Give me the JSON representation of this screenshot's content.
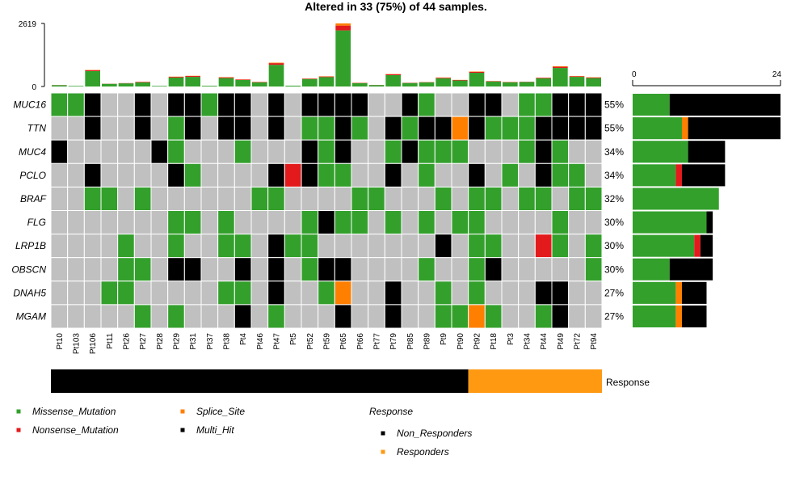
{
  "title": "Altered in 33 (75%) of 44 samples.",
  "chart_data": {
    "type": "heatmap",
    "title": "Altered in 33 (75%) of 44 samples.",
    "samples": [
      "Pt10",
      "Pt103",
      "Pt106",
      "Pt11",
      "Pt26",
      "Pt27",
      "Pt28",
      "Pt29",
      "Pt31",
      "Pt37",
      "Pt38",
      "Pt4",
      "Pt46",
      "Pt47",
      "Pt5",
      "Pt52",
      "Pt59",
      "Pt65",
      "Pt66",
      "Pt77",
      "Pt79",
      "Pt85",
      "Pt89",
      "Pt9",
      "Pt90",
      "Pt92",
      "Pt18",
      "Pt3",
      "Pt34",
      "Pt44",
      "Pt49",
      "Pt72",
      "Pt94"
    ],
    "genes": [
      "MUC16",
      "TTN",
      "MUC4",
      "PCLO",
      "BRAF",
      "FLG",
      "LRP1B",
      "OBSCN",
      "DNAH5",
      "MGAM"
    ],
    "gene_pct": [
      "55%",
      "55%",
      "34%",
      "34%",
      "32%",
      "30%",
      "30%",
      "30%",
      "27%",
      "27%"
    ],
    "matrix": [
      "GGMNNMNMMGMMNMNMMMMNNMGNNMMNGGMMM",
      "NNMNNMNGMNMMNMNGGMGNMGMMSMGGGMMMM",
      "MNNNNNMGNNNGNNNMGMNNGMGGGNNNGMGNN",
      "NNMNNNNMGNNNNMXMGGNNMNGNNMNGNMGGN",
      "NNGGNGNNNNNNGGNNNNGGNNNGNGGNGGNGG",
      "NNNNNNNGGNGNNNNGMGGNGNGNGGNNNNGNN",
      "NNNNGNNGNNGGNMGGNNNNNNNMNGGNNXGNG",
      "NNNNGGNMMNNMNMNGMMNNNNGNNGMNNNNNG",
      "NNNGGNNNNNGGNMNNGSNNMNNGNGNNNMMNN",
      "NNNNNGNGNNNMNGNNNMNNMNNGGSGNNGMNN"
    ],
    "tmb_scale_max": 2619,
    "tmb_ticks": [
      "2619",
      "0"
    ],
    "tmb": [
      {
        "sample": "Pt10",
        "missense": 55,
        "nonsense": 5,
        "splice": 0,
        "multi": 0
      },
      {
        "sample": "Pt103",
        "missense": 25,
        "nonsense": 0,
        "splice": 0,
        "multi": 0
      },
      {
        "sample": "Pt106",
        "missense": 640,
        "nonsense": 40,
        "splice": 10,
        "multi": 0
      },
      {
        "sample": "Pt11",
        "missense": 110,
        "nonsense": 5,
        "splice": 0,
        "multi": 0
      },
      {
        "sample": "Pt26",
        "missense": 130,
        "nonsense": 10,
        "splice": 0,
        "multi": 0
      },
      {
        "sample": "Pt27",
        "missense": 170,
        "nonsense": 20,
        "splice": 5,
        "multi": 0
      },
      {
        "sample": "Pt28",
        "missense": 25,
        "nonsense": 0,
        "splice": 0,
        "multi": 0
      },
      {
        "sample": "Pt29",
        "missense": 370,
        "nonsense": 30,
        "splice": 10,
        "multi": 0
      },
      {
        "sample": "Pt31",
        "missense": 400,
        "nonsense": 35,
        "splice": 10,
        "multi": 0
      },
      {
        "sample": "Pt37",
        "missense": 30,
        "nonsense": 0,
        "splice": 0,
        "multi": 0
      },
      {
        "sample": "Pt38",
        "missense": 350,
        "nonsense": 30,
        "splice": 10,
        "multi": 0
      },
      {
        "sample": "Pt4",
        "missense": 270,
        "nonsense": 20,
        "splice": 5,
        "multi": 0
      },
      {
        "sample": "Pt46",
        "missense": 170,
        "nonsense": 15,
        "splice": 5,
        "multi": 0
      },
      {
        "sample": "Pt47",
        "missense": 900,
        "nonsense": 70,
        "splice": 20,
        "multi": 0
      },
      {
        "sample": "Pt5",
        "missense": 35,
        "nonsense": 0,
        "splice": 0,
        "multi": 0
      },
      {
        "sample": "Pt52",
        "missense": 310,
        "nonsense": 20,
        "splice": 5,
        "multi": 0
      },
      {
        "sample": "Pt59",
        "missense": 390,
        "nonsense": 25,
        "splice": 10,
        "multi": 0
      },
      {
        "sample": "Pt65",
        "missense": 2330,
        "nonsense": 200,
        "splice": 90,
        "multi": 0
      },
      {
        "sample": "Pt66",
        "missense": 140,
        "nonsense": 10,
        "splice": 5,
        "multi": 0
      },
      {
        "sample": "Pt77",
        "missense": 60,
        "nonsense": 5,
        "splice": 0,
        "multi": 0
      },
      {
        "sample": "Pt79",
        "missense": 470,
        "nonsense": 40,
        "splice": 10,
        "multi": 0
      },
      {
        "sample": "Pt85",
        "missense": 145,
        "nonsense": 10,
        "splice": 0,
        "multi": 0
      },
      {
        "sample": "Pt89",
        "missense": 170,
        "nonsense": 10,
        "splice": 5,
        "multi": 0
      },
      {
        "sample": "Pt9",
        "missense": 340,
        "nonsense": 25,
        "splice": 10,
        "multi": 0
      },
      {
        "sample": "Pt90",
        "missense": 250,
        "nonsense": 20,
        "splice": 5,
        "multi": 0
      },
      {
        "sample": "Pt92",
        "missense": 570,
        "nonsense": 40,
        "splice": 15,
        "multi": 0
      },
      {
        "sample": "Pt18",
        "missense": 210,
        "nonsense": 15,
        "splice": 5,
        "multi": 0
      },
      {
        "sample": "Pt3",
        "missense": 175,
        "nonsense": 10,
        "splice": 5,
        "multi": 0
      },
      {
        "sample": "Pt34",
        "missense": 185,
        "nonsense": 10,
        "splice": 0,
        "multi": 0
      },
      {
        "sample": "Pt44",
        "missense": 340,
        "nonsense": 25,
        "splice": 5,
        "multi": 0
      },
      {
        "sample": "Pt49",
        "missense": 770,
        "nonsense": 50,
        "splice": 20,
        "multi": 0
      },
      {
        "sample": "Pt72",
        "missense": 400,
        "nonsense": 25,
        "splice": 10,
        "multi": 0
      },
      {
        "sample": "Pt94",
        "missense": 350,
        "nonsense": 25,
        "splice": 10,
        "multi": 0
      }
    ],
    "gene_bar_scale_max": 24,
    "gene_bar_ticks": [
      "0",
      "24"
    ],
    "gene_bars": [
      {
        "gene": "MUC16",
        "missense": 6,
        "nonsense": 0,
        "splice": 0,
        "multi": 18
      },
      {
        "gene": "TTN",
        "missense": 8,
        "nonsense": 0,
        "splice": 1,
        "multi": 15
      },
      {
        "gene": "MUC4",
        "missense": 9,
        "nonsense": 0,
        "splice": 0,
        "multi": 6
      },
      {
        "gene": "PCLO",
        "missense": 7,
        "nonsense": 1,
        "splice": 0,
        "multi": 7
      },
      {
        "gene": "BRAF",
        "missense": 14,
        "nonsense": 0,
        "splice": 0,
        "multi": 0
      },
      {
        "gene": "FLG",
        "missense": 12,
        "nonsense": 0,
        "splice": 0,
        "multi": 1
      },
      {
        "gene": "LRP1B",
        "missense": 10,
        "nonsense": 1,
        "splice": 0,
        "multi": 2
      },
      {
        "gene": "OBSCN",
        "missense": 6,
        "nonsense": 0,
        "splice": 0,
        "multi": 7
      },
      {
        "gene": "DNAH5",
        "missense": 7,
        "nonsense": 0,
        "splice": 1,
        "multi": 4
      },
      {
        "gene": "MGAM",
        "missense": 7,
        "nonsense": 0,
        "splice": 1,
        "multi": 4
      }
    ],
    "annotation": {
      "label": "Response",
      "groups": [
        {
          "name": "Non_Responders",
          "count": 25,
          "color": "#000000"
        },
        {
          "name": "Responders",
          "count": 8,
          "color": "#FF9912"
        }
      ]
    },
    "legend": {
      "variant_classes": [
        {
          "code": "G",
          "name": "Missense_Mutation",
          "color": "#33A02C"
        },
        {
          "code": "S",
          "name": "Splice_Site",
          "color": "#FF7F00"
        },
        {
          "code": "X",
          "name": "Nonsense_Mutation",
          "color": "#E31A1C"
        },
        {
          "code": "M",
          "name": "Multi_Hit",
          "color": "#000000"
        }
      ],
      "response_title": "Response"
    },
    "none_color": "#C0C0C0"
  }
}
